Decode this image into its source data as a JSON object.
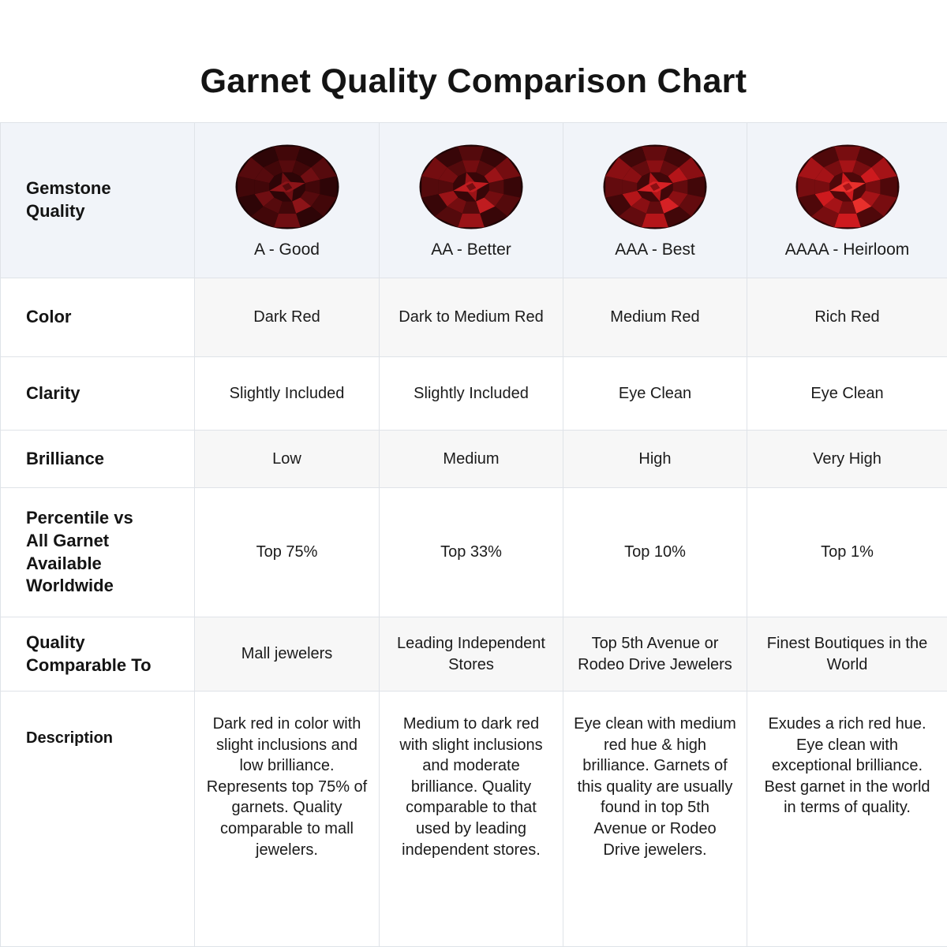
{
  "title": "Garnet Quality Comparison Chart",
  "style": {
    "header_bg": "#f1f4f9",
    "stripe_bg": "#f7f7f7",
    "border": "#dfe3e8",
    "text": "#1b1b1b"
  },
  "chart_data": {
    "type": "table",
    "title": "Garnet Quality Comparison Chart",
    "row_labels": {
      "quality": "Gemstone Quality",
      "color": "Color",
      "clarity": "Clarity",
      "brilliance": "Brilliance",
      "percentile": "Percentile vs All Garnet Available Worldwide",
      "comparable": "Quality Comparable To",
      "description": "Description"
    },
    "grades": [
      {
        "label": "A - Good",
        "color": "Dark Red",
        "clarity": "Slightly Included",
        "brilliance": "Low",
        "percentile": "Top 75%",
        "comparable": "Mall jewelers",
        "description": "Dark red in color with slight inclusions and low brilliance. Represents top 75% of garnets. Quality comparable to mall jewelers.",
        "gem_palette": [
          "#1a0304",
          "#2e0507",
          "#420709",
          "#560a0d",
          "#6f0e12",
          "#8c1418"
        ]
      },
      {
        "label": "AA - Better",
        "color": "Dark to Medium Red",
        "clarity": "Slightly Included",
        "brilliance": "Medium",
        "percentile": "Top 33%",
        "comparable": "Leading Independent Stores",
        "description": "Medium to dark red with slight inclusions and moderate brilliance. Quality comparable to that used by leading independent stores.",
        "gem_palette": [
          "#1e0405",
          "#380608",
          "#540a0c",
          "#740d10",
          "#9a1317",
          "#bf1c20"
        ]
      },
      {
        "label": "AAA - Best",
        "color": "Medium Red",
        "clarity": "Eye Clean",
        "brilliance": "High",
        "percentile": "Top 10%",
        "comparable": "Top 5th Avenue or Rodeo Drive Jewelers",
        "description": "Eye clean with medium red hue & high brilliance. Garnets of this quality are usually found in top 5th Avenue or Rodeo Drive jewelers.",
        "gem_palette": [
          "#230405",
          "#420709",
          "#630b0e",
          "#8a0f13",
          "#b41519",
          "#d62125"
        ]
      },
      {
        "label": "AAAA - Heirloom",
        "color": "Rich Red",
        "clarity": "Eye Clean",
        "brilliance": "Very High",
        "percentile": "Top 1%",
        "comparable": "Finest Boutiques in the World",
        "description": "Exudes a rich red hue. Eye clean with exceptional brilliance. Best garnet in the world in terms of quality.",
        "gem_palette": [
          "#2c0506",
          "#4f080a",
          "#780d10",
          "#a51317",
          "#cd1a1e",
          "#e8302c"
        ]
      }
    ]
  }
}
